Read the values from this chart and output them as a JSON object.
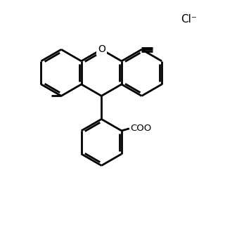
{
  "background_color": "#ffffff",
  "line_color": "#000000",
  "line_width": 2.0,
  "text_color": "#000000",
  "figsize": [
    3.2,
    3.2
  ],
  "dpi": 100,
  "Cl_label": "Cl⁻",
  "COO_label": "COO",
  "O_label": "O"
}
